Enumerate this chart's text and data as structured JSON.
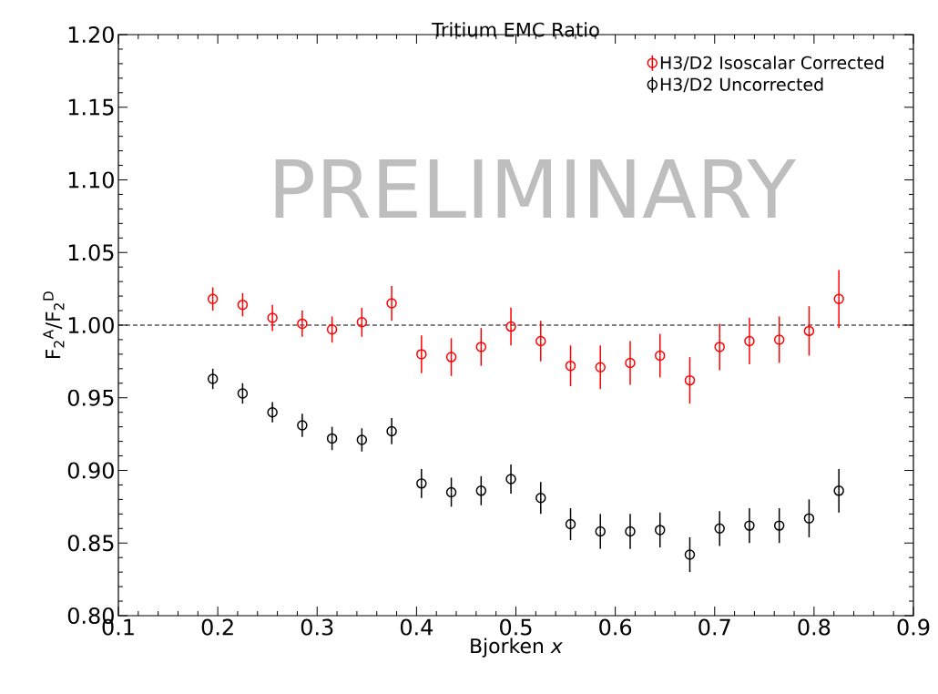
{
  "chart_data": {
    "type": "scatter",
    "title": "Tritium EMC Ratio",
    "xlabel": "Bjorken *x*",
    "ylabel": "F$_{2}$$^{A}$/F$_{2}$$^{D}$",
    "x": [
      0.195,
      0.225,
      0.255,
      0.285,
      0.315,
      0.345,
      0.375,
      0.405,
      0.435,
      0.465,
      0.495,
      0.525,
      0.555,
      0.585,
      0.615,
      0.645,
      0.675,
      0.705,
      0.735,
      0.765,
      0.795,
      0.825
    ],
    "series": [
      {
        "name": "H3/D2 Isoscalar Corrected",
        "color": "#ff0000",
        "values": [
          1.018,
          1.014,
          1.005,
          1.001,
          0.997,
          1.002,
          1.015,
          0.98,
          0.978,
          0.985,
          0.999,
          0.989,
          0.972,
          0.971,
          0.974,
          0.979,
          0.962,
          0.985,
          0.989,
          0.99,
          0.996,
          1.018
        ],
        "errors": [
          0.008,
          0.008,
          0.009,
          0.009,
          0.009,
          0.01,
          0.012,
          0.013,
          0.013,
          0.013,
          0.013,
          0.014,
          0.014,
          0.015,
          0.015,
          0.015,
          0.016,
          0.016,
          0.016,
          0.016,
          0.017,
          0.02
        ]
      },
      {
        "name": "H3/D2 Uncorrected",
        "color": "#000000",
        "values": [
          0.963,
          0.953,
          0.94,
          0.931,
          0.922,
          0.921,
          0.927,
          0.891,
          0.885,
          0.886,
          0.894,
          0.881,
          0.863,
          0.858,
          0.858,
          0.859,
          0.842,
          0.86,
          0.862,
          0.862,
          0.867,
          0.886
        ],
        "errors": [
          0.007,
          0.007,
          0.007,
          0.008,
          0.008,
          0.008,
          0.009,
          0.01,
          0.01,
          0.01,
          0.01,
          0.011,
          0.011,
          0.012,
          0.012,
          0.012,
          0.012,
          0.012,
          0.012,
          0.012,
          0.013,
          0.015
        ]
      }
    ],
    "xlim": [
      0.1,
      0.9
    ],
    "xticks": [
      0.1,
      0.2,
      0.3,
      0.4,
      0.5,
      0.6,
      0.7,
      0.8,
      0.9
    ],
    "ylim": [
      0.8,
      1.2
    ],
    "yticks": [
      {
        "value": 0.8,
        "label": "0.80"
      },
      {
        "value": 0.85,
        "label": "0.85"
      },
      {
        "value": 0.9,
        "label": "0.90"
      },
      {
        "value": 0.95,
        "label": "0.95"
      },
      {
        "value": 1.0,
        "label": "1.00"
      },
      {
        "value": 1.05,
        "label": "1.05"
      },
      {
        "value": 1.1,
        "label": "1.10"
      },
      {
        "value": 1.15,
        "label": "1.15"
      },
      {
        "value": 1.2,
        "label": "1.20"
      }
    ],
    "ref_lines": [
      {
        "axis": "y",
        "value": 1.0,
        "color": "#000000",
        "line_style": "dashed"
      }
    ],
    "annotations": [
      "PRELIMINARY"
    ],
    "legend": "top right",
    "marker": "circle"
  }
}
